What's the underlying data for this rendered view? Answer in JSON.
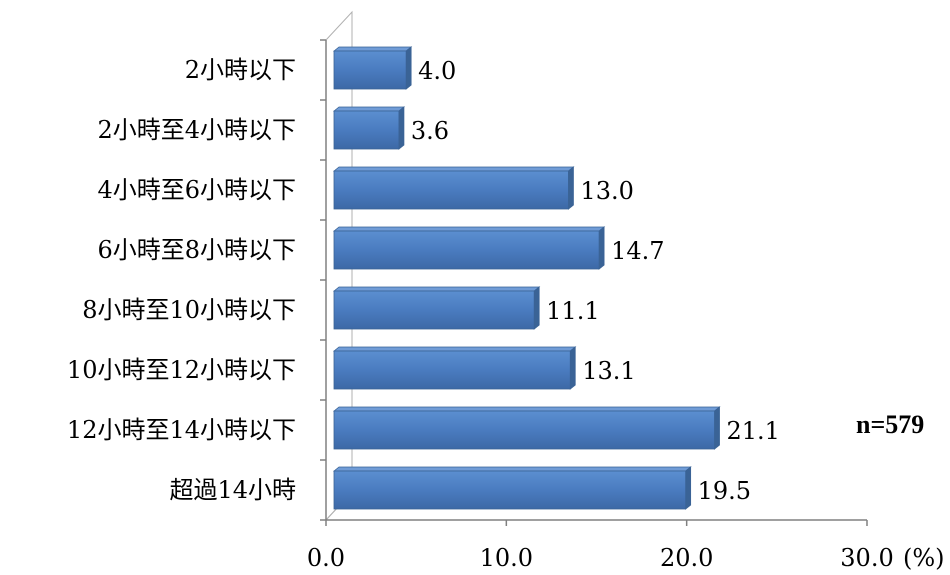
{
  "chart_data": {
    "type": "bar",
    "orientation": "horizontal",
    "categories": [
      "2小時以下",
      "2小時至4小時以下",
      "4小時至6小時以下",
      "6小時至8小時以下",
      "8小時至10小時以下",
      "10小時至12小時以下",
      "12小時至14小時以下",
      "超過14小時"
    ],
    "values": [
      4.0,
      3.6,
      13.0,
      14.7,
      11.1,
      13.1,
      21.1,
      19.5
    ],
    "value_labels": [
      "4.0",
      "3.6",
      "13.0",
      "14.7",
      "11.1",
      "13.1",
      "21.1",
      "19.5"
    ],
    "xlim": [
      0,
      30
    ],
    "x_ticks": [
      "0.0",
      "10.0",
      "20.0",
      "30.0"
    ],
    "x_unit": "(%)",
    "annotation": "n=579",
    "grid": false,
    "bar_color": "#4f81bd",
    "bar_edge_color": "#3a6396"
  }
}
